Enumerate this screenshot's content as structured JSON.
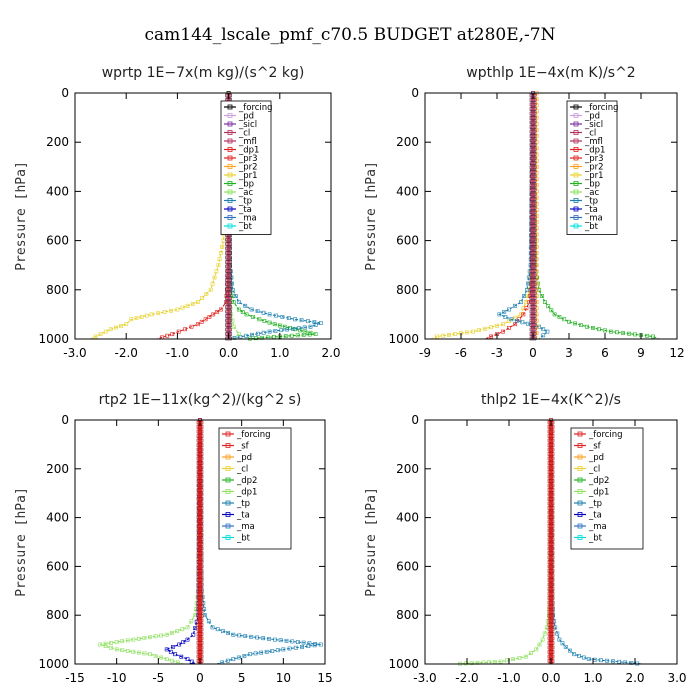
{
  "page": {
    "title": "cam144_lscale_pmf_c70.5  BUDGET at280E,-7N"
  },
  "chart_data": [
    {
      "type": "line",
      "title": "wprtp   1E−7x(m kg)/(s^2 kg)",
      "ylabel": "Pressure [hPa]",
      "xlim": [
        -3.0,
        2.0
      ],
      "ylim": [
        1000,
        0
      ],
      "xticks": [
        -3.0,
        -2.0,
        -1.0,
        0.0,
        1.0,
        2.0
      ],
      "xtick_labels": [
        "-3.0",
        "-2.0",
        "-1.0",
        "0.0",
        "1.0",
        "2.0"
      ],
      "yticks": [
        0,
        200,
        400,
        600,
        800,
        1000
      ],
      "legend": [
        "_forcing",
        "_pd",
        "_sicl",
        "_cl",
        "_mfl",
        "_dp1",
        "_pr3",
        "_pr2",
        "_pr1",
        "_bp",
        "_ac",
        "_tp",
        "_ta",
        "_ma",
        "_bt"
      ],
      "colors": {
        "_forcing": "#000000",
        "_pd": "#c9a0dc",
        "_sicl": "#7b2fa0",
        "_cl": "#b03060",
        "_mfl": "#b03060",
        "_dp1": "#e02020",
        "_pr3": "#e02020",
        "_pr2": "#ffa020",
        "_pr1": "#e6d230",
        "_bp": "#20b020",
        "_ac": "#90e060",
        "_tp": "#1e80b0",
        "_ta": "#0000c0",
        "_ma": "#3070c0",
        "_bt": "#00e0e0"
      },
      "series": [
        {
          "name": "_bp",
          "y": [
            0,
            500,
            700,
            800,
            850,
            880,
            900,
            920,
            940,
            960,
            980,
            1000
          ],
          "x": [
            0.0,
            0.0,
            0.02,
            0.05,
            0.1,
            0.2,
            0.35,
            0.6,
            0.9,
            1.3,
            1.7,
            0.3
          ]
        },
        {
          "name": "_tp",
          "y": [
            0,
            500,
            700,
            800,
            850,
            880,
            900,
            920,
            935,
            950,
            970,
            1000
          ],
          "x": [
            0.0,
            0.0,
            0.03,
            0.08,
            0.2,
            0.45,
            0.8,
            1.3,
            1.8,
            1.6,
            0.8,
            0.0
          ]
        },
        {
          "name": "_pr1",
          "y": [
            0,
            400,
            600,
            700,
            800,
            850,
            880,
            900,
            920,
            940,
            960,
            980,
            1000
          ],
          "x": [
            0.0,
            -0.05,
            -0.1,
            -0.2,
            -0.35,
            -0.6,
            -1.0,
            -1.5,
            -1.9,
            -2.0,
            -2.3,
            -2.5,
            -2.7
          ]
        },
        {
          "name": "_dp1",
          "y": [
            0,
            700,
            850,
            880,
            900,
            920,
            940,
            960,
            980,
            1000
          ],
          "x": [
            0.0,
            0.0,
            -0.05,
            -0.15,
            -0.3,
            -0.45,
            -0.6,
            -0.85,
            -1.1,
            -1.4
          ]
        },
        {
          "name": "_ac",
          "y": [
            0,
            800,
            900,
            950,
            980,
            1000
          ],
          "x": [
            0.0,
            0.0,
            0.05,
            0.1,
            0.2,
            0.1
          ]
        },
        {
          "name": "_forcing",
          "y": [
            0,
            200,
            400,
            600,
            800,
            1000
          ],
          "x": [
            0.0,
            0.0,
            0.0,
            0.0,
            0.0,
            0.0
          ]
        }
      ]
    },
    {
      "type": "line",
      "title": "wpthlp   1E−4x(m K)/s^2",
      "ylabel": "Pressure [hPa]",
      "xlim": [
        -9,
        12
      ],
      "ylim": [
        1000,
        0
      ],
      "xticks": [
        -9,
        -6,
        -3,
        0,
        3,
        6,
        9,
        12
      ],
      "xtick_labels": [
        "-9",
        "-6",
        "-3",
        "0",
        "3",
        "6",
        "9",
        "12"
      ],
      "yticks": [
        0,
        200,
        400,
        600,
        800,
        1000
      ],
      "legend": [
        "_forcing",
        "_pd",
        "_sicl",
        "_cl",
        "_mfl",
        "_dp1",
        "_pr3",
        "_pr2",
        "_pr1",
        "_bp",
        "_ac",
        "_tp",
        "_ta",
        "_ma",
        "_bt"
      ],
      "colors": {
        "_forcing": "#000000",
        "_pd": "#c9a0dc",
        "_sicl": "#7b2fa0",
        "_cl": "#b03060",
        "_mfl": "#b03060",
        "_dp1": "#e02020",
        "_pr3": "#e02020",
        "_pr2": "#ffa020",
        "_pr1": "#e6d230",
        "_bp": "#20b020",
        "_ac": "#90e060",
        "_tp": "#1e80b0",
        "_ta": "#0000c0",
        "_ma": "#3070c0",
        "_bt": "#00e0e0"
      },
      "series": [
        {
          "name": "_bp",
          "y": [
            0,
            700,
            800,
            850,
            900,
            930,
            950,
            970,
            990,
            1000
          ],
          "x": [
            0,
            0.2,
            0.5,
            1.0,
            1.8,
            3.0,
            4.5,
            6.5,
            10,
            10.5
          ]
        },
        {
          "name": "_pr1",
          "y": [
            0,
            700,
            800,
            850,
            900,
            940,
            970,
            990,
            1000
          ],
          "x": [
            0,
            -0.1,
            -0.3,
            -0.6,
            -1.0,
            -2.5,
            -5,
            -8,
            -8.5
          ]
        },
        {
          "name": "_dp1",
          "y": [
            0,
            750,
            850,
            900,
            940,
            970,
            990,
            1000
          ],
          "x": [
            0,
            -0.1,
            -0.3,
            -0.8,
            -1.5,
            -2.5,
            -3.5,
            -4
          ]
        },
        {
          "name": "_tp",
          "y": [
            0,
            700,
            800,
            850,
            880,
            900,
            920,
            950,
            970,
            1000
          ],
          "x": [
            0,
            -0.2,
            -0.5,
            -1.0,
            -2.0,
            -2.8,
            -1.8,
            0.5,
            1.2,
            0.5
          ]
        },
        {
          "name": "_pr2",
          "y": [
            0,
            200,
            400,
            600,
            800,
            1000
          ],
          "x": [
            0.3,
            0.3,
            0.3,
            0.3,
            0.3,
            0.3
          ]
        },
        {
          "name": "_sicl",
          "y": [
            0,
            200,
            400,
            600,
            800,
            1000
          ],
          "x": [
            0,
            0,
            0,
            0,
            0,
            0
          ]
        }
      ]
    },
    {
      "type": "line",
      "title": "rtp2   1E−11x(kg^2)/(kg^2 s)",
      "ylabel": "Pressure [hPa]",
      "xlim": [
        -15,
        15
      ],
      "ylim": [
        1000,
        0
      ],
      "xticks": [
        -15,
        -10,
        -5,
        0,
        5,
        10,
        15
      ],
      "xtick_labels": [
        "-15",
        "-10",
        "-5",
        "0",
        "5",
        "10",
        "15"
      ],
      "yticks": [
        0,
        200,
        400,
        600,
        800,
        1000
      ],
      "legend": [
        "_forcing",
        "_sf",
        "_pd",
        "_cl",
        "_dp2",
        "_dp1",
        "_tp",
        "_ta",
        "_ma",
        "_bt"
      ],
      "colors": {
        "_forcing": "#e02020",
        "_sf": "#e02020",
        "_pd": "#ffa020",
        "_cl": "#e6d230",
        "_dp2": "#20b020",
        "_dp1": "#90e060",
        "_tp": "#1e80b0",
        "_ta": "#0000c0",
        "_ma": "#3070c0",
        "_bt": "#00e0e0"
      },
      "series": [
        {
          "name": "_dp1",
          "y": [
            0,
            700,
            800,
            850,
            880,
            900,
            920,
            940,
            960,
            980,
            1000
          ],
          "x": [
            0,
            -0.2,
            -0.6,
            -1.5,
            -4,
            -8,
            -12,
            -10,
            -6,
            -4,
            -2
          ]
        },
        {
          "name": "_tp",
          "y": [
            0,
            700,
            800,
            850,
            880,
            900,
            920,
            940,
            960,
            980,
            1000
          ],
          "x": [
            0,
            0.2,
            0.6,
            1.5,
            4,
            9,
            14.5,
            10,
            6,
            4,
            2
          ]
        },
        {
          "name": "_ta",
          "y": [
            0,
            800,
            880,
            900,
            920,
            940,
            960,
            980,
            1000
          ],
          "x": [
            0,
            -0.2,
            -0.8,
            -1.5,
            -2.5,
            -4,
            -3,
            -1.5,
            -0.5
          ]
        },
        {
          "name": "_forcing",
          "y": [
            0,
            200,
            400,
            600,
            800,
            1000
          ],
          "x": [
            0,
            0,
            0,
            0,
            0,
            0
          ]
        }
      ]
    },
    {
      "type": "line",
      "title": "thlp2   1E−4x(K^2)/s",
      "ylabel": "Pressure [hPa]",
      "xlim": [
        -3.0,
        3.0
      ],
      "ylim": [
        1000,
        0
      ],
      "xticks": [
        -3.0,
        -2.0,
        -1.0,
        0.0,
        1.0,
        2.0,
        3.0
      ],
      "xtick_labels": [
        "-3.0",
        "-2.0",
        "-1.0",
        "0.0",
        "1.0",
        "2.0",
        "3.0"
      ],
      "yticks": [
        0,
        200,
        400,
        600,
        800,
        1000
      ],
      "legend": [
        "_forcing",
        "_sf",
        "_pd",
        "_cl",
        "_dp2",
        "_dp1",
        "_tp",
        "_ta",
        "_ma",
        "_bt"
      ],
      "colors": {
        "_forcing": "#e02020",
        "_sf": "#e02020",
        "_pd": "#ffa020",
        "_cl": "#e6d230",
        "_dp2": "#20b020",
        "_dp1": "#90e060",
        "_tp": "#1e80b0",
        "_ta": "#0000c0",
        "_ma": "#3070c0",
        "_bt": "#00e0e0"
      },
      "series": [
        {
          "name": "_dp1",
          "y": [
            0,
            700,
            800,
            850,
            900,
            940,
            970,
            990,
            1000
          ],
          "x": [
            0,
            -0.02,
            -0.05,
            -0.1,
            -0.2,
            -0.35,
            -0.6,
            -1.2,
            -2.3
          ]
        },
        {
          "name": "_tp",
          "y": [
            0,
            700,
            800,
            850,
            900,
            930,
            960,
            980,
            1000
          ],
          "x": [
            0,
            0.02,
            0.05,
            0.1,
            0.2,
            0.35,
            0.55,
            0.9,
            2.2
          ]
        },
        {
          "name": "_forcing",
          "y": [
            0,
            200,
            400,
            600,
            800,
            1000
          ],
          "x": [
            0,
            0,
            0,
            0,
            0,
            0
          ]
        }
      ]
    }
  ]
}
